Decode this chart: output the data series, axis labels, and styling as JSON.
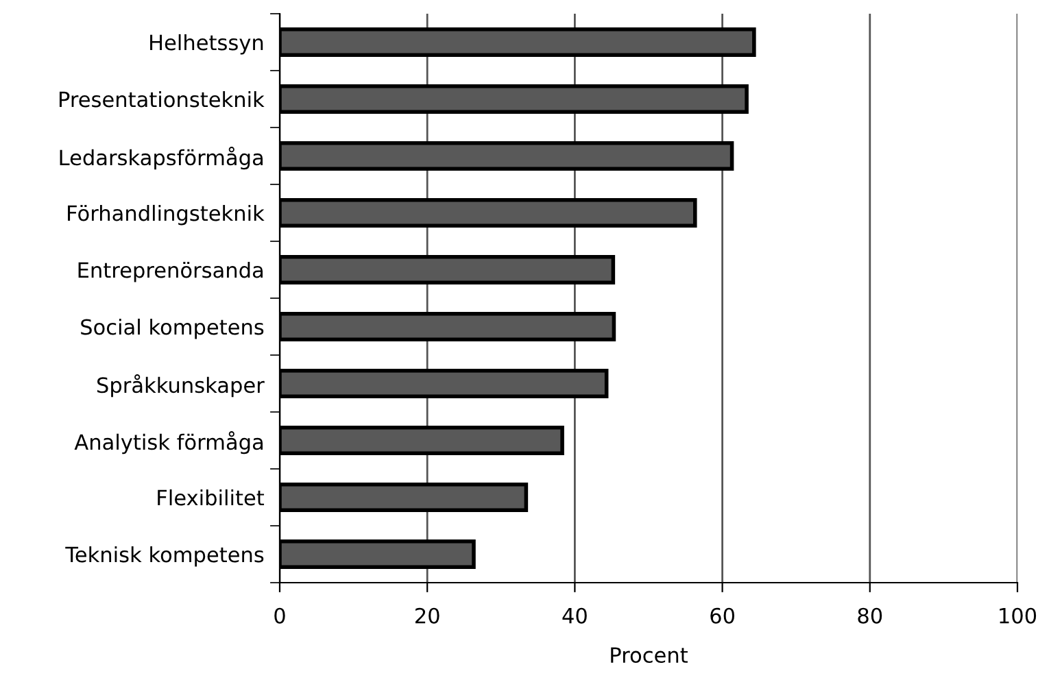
{
  "chart_data": {
    "type": "bar",
    "orientation": "horizontal",
    "xlabel": "Procent",
    "categories": [
      "Helhetssyn",
      "Presentationsteknik",
      "Ledarskapsförmåga",
      "Förhandlingsteknik",
      "Entreprenörsanda",
      "Social kompetens",
      "Språkkunskaper",
      "Analytisk förmåga",
      "Flexibilitet",
      "Teknisk kompetens"
    ],
    "values": [
      64.3,
      63.3,
      61.3,
      56.3,
      45.2,
      45.3,
      44.3,
      38.3,
      33.4,
      26.3
    ],
    "color": "#595959",
    "xlim": [
      0,
      100
    ],
    "xticks": [
      0,
      20,
      40,
      60,
      80,
      100
    ],
    "grid": "x",
    "legend": false
  }
}
